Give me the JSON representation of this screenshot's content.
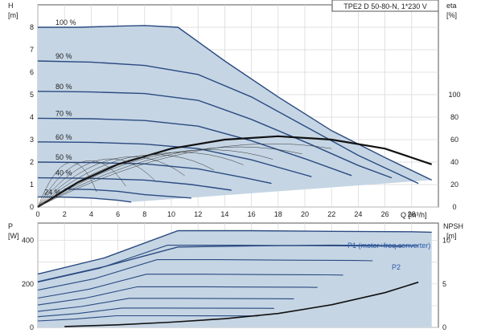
{
  "chart_data": [
    {
      "type": "line",
      "title": "TPE2 D 50-80-N, 1*230 V",
      "xlabel": "Q [m³/h]",
      "ylabel_left_name": "H",
      "ylabel_left_unit": "[m]",
      "ylabel_right_name": "eta",
      "ylabel_right_unit": "[%]",
      "xlim": [
        0,
        30
      ],
      "ylim_left": [
        0,
        9
      ],
      "ylim_right": [
        0,
        180
      ],
      "x_ticks": [
        "0",
        "2",
        "4",
        "6",
        "8",
        "10",
        "12",
        "14",
        "16",
        "18",
        "20",
        "22",
        "24",
        "26",
        "28"
      ],
      "y_left_ticks": [
        "0",
        "1",
        "2",
        "3",
        "4",
        "5",
        "6",
        "7",
        "8"
      ],
      "y_right_ticks": [
        "0",
        "20",
        "40",
        "60",
        "80",
        "100"
      ],
      "grid": true,
      "fill_color": "#c5d5e4",
      "curve_color": "#2a4a80",
      "series": [
        {
          "name": "100 %",
          "x": [
            0,
            3,
            6,
            8,
            10.5,
            14,
            18,
            22,
            26,
            29.5
          ],
          "y": [
            8.0,
            8.0,
            8.05,
            8.08,
            8.0,
            6.5,
            4.9,
            3.4,
            2.2,
            1.2
          ]
        },
        {
          "name": "90 %",
          "x": [
            0,
            4,
            8,
            12,
            16,
            20,
            24,
            28.5
          ],
          "y": [
            6.5,
            6.45,
            6.3,
            5.9,
            4.9,
            3.6,
            2.3,
            1.05
          ]
        },
        {
          "name": "80 %",
          "x": [
            0,
            4,
            8,
            12,
            16,
            20,
            24,
            26.5
          ],
          "y": [
            5.15,
            5.12,
            5.05,
            4.75,
            3.9,
            2.9,
            1.85,
            1.3
          ]
        },
        {
          "name": "70 %",
          "x": [
            0,
            4,
            8,
            12,
            16,
            20,
            23.5
          ],
          "y": [
            3.95,
            3.93,
            3.85,
            3.6,
            2.95,
            2.15,
            1.4
          ]
        },
        {
          "name": "60 %",
          "x": [
            0,
            4,
            8,
            12,
            16,
            20.5
          ],
          "y": [
            2.9,
            2.88,
            2.8,
            2.6,
            2.1,
            1.35
          ]
        },
        {
          "name": "50 %",
          "x": [
            0,
            4,
            8,
            12,
            15.5,
            17.5
          ],
          "y": [
            2.0,
            1.98,
            1.92,
            1.7,
            1.3,
            1.05
          ]
        },
        {
          "name": "40 %",
          "x": [
            0,
            4,
            8,
            11.5,
            14.5
          ],
          "y": [
            1.3,
            1.28,
            1.2,
            1.0,
            0.75
          ]
        },
        {
          "name": "24 %",
          "x": [
            0,
            2,
            4,
            6,
            7
          ],
          "y": [
            0.45,
            0.44,
            0.4,
            0.3,
            0.22
          ]
        },
        {
          "name": "",
          "x": [
            2,
            4,
            6,
            8,
            11.5
          ],
          "y": [
            0.8,
            0.78,
            0.7,
            0.55,
            0.4
          ]
        }
      ],
      "efficiency_curve": {
        "x": [
          0,
          3,
          6,
          10,
          14,
          18,
          22,
          26,
          29.5
        ],
        "y": [
          0,
          22,
          38,
          52,
          60,
          63,
          60,
          52,
          38
        ]
      }
    },
    {
      "type": "line",
      "xlabel": "",
      "ylabel_left_name": "P",
      "ylabel_left_unit": "[W]",
      "ylabel_right_name": "NPSH",
      "ylabel_right_unit": "[m]",
      "xlim": [
        0,
        30
      ],
      "ylim_left": [
        0,
        480
      ],
      "ylim_right": [
        0,
        12
      ],
      "y_left_ticks": [
        "0",
        "200",
        "400"
      ],
      "y_right_ticks": [
        "0",
        "5",
        "10"
      ],
      "grid": true,
      "series": [
        {
          "name": "P1 (motor+freq.converter)",
          "x": [
            0,
            5,
            10.5,
            16,
            22,
            28,
            29.5
          ],
          "y": [
            245,
            320,
            445,
            445,
            442,
            440,
            438
          ]
        },
        {
          "name": "P2",
          "x": [
            0,
            5,
            10.5,
            16,
            22,
            28.5
          ],
          "y": [
            210,
            280,
            370,
            375,
            378,
            375
          ]
        }
      ],
      "npsh_curve": {
        "x": [
          2,
          6,
          10,
          14,
          18,
          22,
          26,
          28.5
        ],
        "y": [
          0.1,
          0.3,
          0.6,
          1.0,
          1.6,
          2.6,
          4.0,
          5.2
        ]
      }
    }
  ]
}
